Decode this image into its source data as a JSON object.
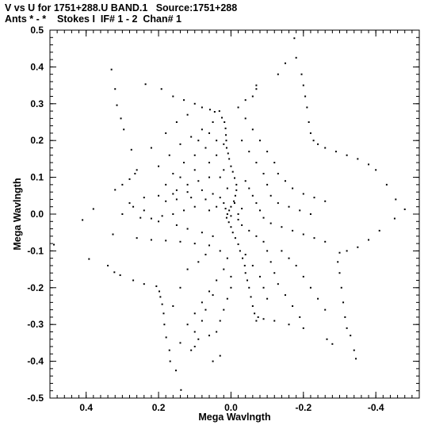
{
  "title_line1": "V vs U for 1751+288.U BAND.1   Source:1751+288",
  "title_line2": "Ants * - *    Stokes I  IF# 1 - 2  Chan# 1",
  "chart_data": {
    "type": "scatter",
    "title": "V vs U for 1751+288.U BAND.1   Source:1751+288",
    "subtitle": "Ants * - *    Stokes I  IF# 1 - 2  Chan# 1",
    "xlabel": "Mega Wavlngth",
    "ylabel": "Mega Wavlngth",
    "xlim": [
      0.5,
      -0.52
    ],
    "ylim": [
      -0.5,
      0.5
    ],
    "x_reversed": true,
    "xticks": [
      0.4,
      0.2,
      0.0,
      -0.2,
      -0.4
    ],
    "xtick_labels": [
      "0.4",
      "0.2",
      "0.0",
      "-0.2",
      "-0.4"
    ],
    "yticks": [
      0.5,
      0.4,
      0.3,
      0.2,
      0.1,
      0.0,
      -0.1,
      -0.2,
      -0.3,
      -0.4,
      -0.5
    ],
    "ytick_labels": [
      "0.5",
      "0.4",
      "0.3",
      "0.2",
      "0.1",
      "0.0",
      "-0.1",
      "-0.2",
      "-0.3",
      "-0.4",
      "-0.5"
    ],
    "grid": false,
    "marker": "dot",
    "marker_color": "#000000",
    "series": [
      {
        "values": [
          [
            0.489,
            -0.083
          ],
          [
            0.41,
            -0.016
          ],
          [
            0.38,
            0.014
          ],
          [
            0.392,
            -0.122
          ],
          [
            0.34,
            -0.14
          ],
          [
            0.322,
            -0.158
          ],
          [
            0.306,
            -0.166
          ],
          [
            0.27,
            -0.18
          ],
          [
            0.24,
            -0.19
          ],
          [
            0.206,
            -0.196
          ],
          [
            0.198,
            -0.21
          ],
          [
            0.195,
            -0.225
          ],
          [
            0.19,
            -0.245
          ],
          [
            0.186,
            -0.27
          ],
          [
            0.184,
            -0.3
          ],
          [
            0.179,
            -0.335
          ],
          [
            0.17,
            -0.37
          ],
          [
            0.168,
            -0.4
          ],
          [
            0.152,
            -0.425
          ],
          [
            0.138,
            -0.478
          ],
          [
            0.326,
            -0.055
          ],
          [
            0.32,
            0.066
          ],
          [
            0.3,
            0.08
          ],
          [
            0.28,
            0.095
          ],
          [
            0.265,
            0.11
          ],
          [
            0.26,
            0.12
          ],
          [
            0.275,
            0.175
          ],
          [
            0.296,
            0.23
          ],
          [
            0.304,
            0.26
          ],
          [
            0.315,
            0.296
          ],
          [
            0.32,
            0.34
          ],
          [
            0.33,
            0.393
          ],
          [
            0.236,
            0.353
          ],
          [
            0.192,
            0.34
          ],
          [
            0.16,
            0.32
          ],
          [
            0.13,
            0.31
          ],
          [
            0.1,
            0.3
          ],
          [
            0.08,
            0.29
          ],
          [
            0.058,
            0.284
          ],
          [
            0.045,
            0.278
          ],
          [
            0.032,
            0.28
          ],
          [
            0.025,
            0.262
          ],
          [
            0.018,
            0.25
          ],
          [
            0.015,
            0.233
          ],
          [
            0.014,
            0.215
          ],
          [
            0.013,
            0.2
          ],
          [
            0.012,
            0.18
          ],
          [
            0.008,
            0.165
          ],
          [
            0.005,
            0.15
          ],
          [
            0.0,
            0.13
          ],
          [
            -0.005,
            0.115
          ],
          [
            -0.01,
            0.098
          ],
          [
            -0.015,
            0.08
          ],
          [
            -0.015,
            0.065
          ],
          [
            -0.012,
            0.05
          ],
          [
            -0.008,
            0.035
          ],
          [
            0.0,
            0.02
          ],
          [
            0.005,
            0.01
          ],
          [
            0.01,
            0.0
          ],
          [
            0.012,
            -0.01
          ],
          [
            0.006,
            -0.022
          ],
          [
            0.0,
            -0.035
          ],
          [
            -0.005,
            -0.05
          ],
          [
            -0.012,
            -0.065
          ],
          [
            -0.02,
            -0.082
          ],
          [
            -0.025,
            -0.1
          ],
          [
            -0.032,
            -0.12
          ],
          [
            -0.038,
            -0.14
          ],
          [
            -0.04,
            -0.16
          ],
          [
            -0.045,
            -0.18
          ],
          [
            -0.05,
            -0.2
          ],
          [
            -0.055,
            -0.225
          ],
          [
            -0.06,
            -0.25
          ],
          [
            -0.065,
            -0.27
          ],
          [
            -0.07,
            -0.29
          ],
          [
            -0.02,
            0.29
          ],
          [
            -0.04,
            0.31
          ],
          [
            -0.06,
            0.32
          ],
          [
            -0.07,
            0.34
          ],
          [
            -0.07,
            0.35
          ],
          [
            -0.13,
            0.38
          ],
          [
            -0.15,
            0.41
          ],
          [
            -0.175,
            0.478
          ],
          [
            -0.18,
            0.425
          ],
          [
            -0.195,
            0.38
          ],
          [
            -0.2,
            0.35
          ],
          [
            -0.205,
            0.32
          ],
          [
            -0.21,
            0.29
          ],
          [
            -0.215,
            0.25
          ],
          [
            -0.22,
            0.22
          ],
          [
            -0.228,
            0.2
          ],
          [
            -0.24,
            0.19
          ],
          [
            -0.26,
            0.18
          ],
          [
            -0.29,
            0.17
          ],
          [
            -0.32,
            0.16
          ],
          [
            -0.35,
            0.15
          ],
          [
            -0.38,
            0.135
          ],
          [
            -0.4,
            0.12
          ],
          [
            -0.43,
            0.08
          ],
          [
            -0.455,
            0.04
          ],
          [
            -0.48,
            0.013
          ],
          [
            -0.452,
            -0.012
          ],
          [
            -0.41,
            -0.045
          ],
          [
            -0.38,
            -0.07
          ],
          [
            -0.35,
            -0.09
          ],
          [
            -0.32,
            -0.1
          ],
          [
            -0.3,
            -0.105
          ],
          [
            -0.295,
            -0.13
          ],
          [
            -0.3,
            -0.16
          ],
          [
            -0.305,
            -0.2
          ],
          [
            -0.31,
            -0.24
          ],
          [
            -0.315,
            -0.28
          ],
          [
            -0.32,
            -0.31
          ],
          [
            -0.33,
            -0.33
          ],
          [
            -0.34,
            -0.37
          ],
          [
            -0.345,
            -0.393
          ],
          [
            -0.265,
            -0.34
          ],
          [
            -0.28,
            -0.353
          ],
          [
            -0.2,
            -0.31
          ],
          [
            -0.16,
            -0.3
          ],
          [
            -0.12,
            -0.29
          ],
          [
            -0.09,
            -0.285
          ],
          [
            -0.075,
            -0.28
          ],
          [
            0.04,
            -0.32
          ],
          [
            0.06,
            -0.33
          ],
          [
            0.09,
            -0.34
          ],
          [
            0.1,
            -0.36
          ],
          [
            0.11,
            -0.37
          ],
          [
            0.05,
            -0.4
          ],
          [
            0.03,
            -0.385
          ],
          [
            0.14,
            -0.35
          ],
          [
            0.12,
            -0.3
          ],
          [
            0.1,
            -0.27
          ],
          [
            0.08,
            -0.24
          ],
          [
            0.06,
            -0.21
          ],
          [
            0.04,
            -0.18
          ],
          [
            0.02,
            -0.15
          ],
          [
            0.01,
            -0.12
          ],
          [
            0.03,
            -0.1
          ],
          [
            0.06,
            -0.085
          ],
          [
            0.1,
            -0.08
          ],
          [
            0.14,
            -0.075
          ],
          [
            0.18,
            -0.072
          ],
          [
            0.22,
            -0.07
          ],
          [
            0.26,
            -0.065
          ],
          [
            0.12,
            -0.15
          ],
          [
            0.14,
            -0.2
          ],
          [
            0.16,
            -0.25
          ],
          [
            0.09,
            -0.13
          ],
          [
            0.07,
            -0.11
          ],
          [
            0.05,
            -0.06
          ],
          [
            0.08,
            -0.05
          ],
          [
            0.12,
            -0.04
          ],
          [
            0.15,
            -0.03
          ],
          [
            0.2,
            -0.02
          ],
          [
            0.25,
            -0.01
          ],
          [
            0.3,
            0.0
          ],
          [
            0.28,
            0.03
          ],
          [
            0.24,
            0.045
          ],
          [
            0.2,
            0.05
          ],
          [
            0.16,
            0.055
          ],
          [
            0.12,
            0.06
          ],
          [
            0.08,
            0.065
          ],
          [
            0.05,
            0.055
          ],
          [
            0.03,
            0.045
          ],
          [
            0.18,
            0.08
          ],
          [
            0.14,
            0.1
          ],
          [
            0.1,
            0.12
          ],
          [
            0.06,
            0.14
          ],
          [
            0.04,
            0.16
          ],
          [
            0.2,
            0.13
          ],
          [
            0.17,
            0.16
          ],
          [
            0.14,
            0.19
          ],
          [
            0.11,
            0.21
          ],
          [
            0.08,
            0.23
          ],
          [
            0.05,
            0.25
          ],
          [
            0.22,
            0.18
          ],
          [
            0.18,
            0.22
          ],
          [
            0.15,
            0.25
          ],
          [
            0.12,
            0.27
          ],
          [
            -0.04,
            0.26
          ],
          [
            -0.06,
            0.23
          ],
          [
            -0.08,
            0.2
          ],
          [
            -0.1,
            0.17
          ],
          [
            -0.12,
            0.14
          ],
          [
            -0.13,
            0.11
          ],
          [
            -0.15,
            0.09
          ],
          [
            -0.17,
            0.07
          ],
          [
            -0.2,
            0.055
          ],
          [
            -0.23,
            0.045
          ],
          [
            -0.26,
            0.035
          ],
          [
            -0.03,
            0.2
          ],
          [
            -0.05,
            0.17
          ],
          [
            -0.07,
            0.14
          ],
          [
            -0.09,
            0.11
          ],
          [
            -0.1,
            0.08
          ],
          [
            -0.11,
            0.05
          ],
          [
            -0.13,
            0.03
          ],
          [
            -0.16,
            0.02
          ],
          [
            -0.19,
            0.01
          ],
          [
            -0.22,
            0.0
          ],
          [
            -0.04,
            0.09
          ],
          [
            -0.05,
            0.07
          ],
          [
            -0.06,
            0.05
          ],
          [
            -0.07,
            0.03
          ],
          [
            -0.08,
            0.01
          ],
          [
            -0.09,
            -0.01
          ],
          [
            -0.11,
            -0.025
          ],
          [
            -0.14,
            -0.035
          ],
          [
            -0.17,
            -0.045
          ],
          [
            -0.2,
            -0.055
          ],
          [
            -0.23,
            -0.065
          ],
          [
            -0.26,
            -0.075
          ],
          [
            -0.03,
            -0.03
          ],
          [
            -0.05,
            -0.045
          ],
          [
            -0.07,
            -0.06
          ],
          [
            -0.09,
            -0.075
          ],
          [
            -0.1,
            -0.1
          ],
          [
            -0.11,
            -0.13
          ],
          [
            -0.12,
            -0.16
          ],
          [
            -0.13,
            -0.19
          ],
          [
            -0.15,
            -0.22
          ],
          [
            -0.17,
            -0.25
          ],
          [
            -0.19,
            -0.28
          ],
          [
            -0.14,
            -0.1
          ],
          [
            -0.16,
            -0.12
          ],
          [
            -0.18,
            -0.14
          ],
          [
            -0.2,
            -0.17
          ],
          [
            -0.22,
            -0.2
          ],
          [
            -0.24,
            -0.23
          ],
          [
            -0.26,
            -0.26
          ],
          [
            -0.04,
            -0.11
          ],
          [
            -0.06,
            -0.14
          ],
          [
            -0.08,
            -0.17
          ],
          [
            -0.09,
            -0.2
          ],
          [
            -0.1,
            -0.23
          ],
          [
            0.0,
            -0.17
          ],
          [
            0.0,
            -0.2
          ],
          [
            0.01,
            -0.23
          ],
          [
            0.02,
            -0.26
          ],
          [
            0.03,
            -0.29
          ],
          [
            0.05,
            -0.22
          ],
          [
            0.07,
            -0.26
          ],
          [
            0.08,
            -0.29
          ],
          [
            0.1,
            -0.32
          ],
          [
            0.03,
            0.1
          ],
          [
            0.02,
            0.12
          ],
          [
            0.01,
            0.07
          ],
          [
            0.02,
            0.03
          ],
          [
            0.04,
            0.02
          ],
          [
            0.06,
            0.01
          ],
          [
            -0.02,
            0.0
          ],
          [
            -0.03,
            0.015
          ],
          [
            -0.02,
            -0.015
          ],
          [
            0.0,
            -0.005
          ],
          [
            0.015,
            0.015
          ],
          [
            -0.01,
            0.03
          ],
          [
            0.1,
            0.02
          ],
          [
            0.13,
            0.01
          ],
          [
            0.16,
            0.0
          ],
          [
            0.19,
            -0.005
          ],
          [
            0.22,
            -0.012
          ],
          [
            0.24,
            0.01
          ],
          [
            0.27,
            0.02
          ],
          [
            0.18,
            0.035
          ],
          [
            0.15,
            0.04
          ],
          [
            0.11,
            0.045
          ],
          [
            0.07,
            0.04
          ],
          [
            0.09,
            0.09
          ],
          [
            0.12,
            0.08
          ],
          [
            0.15,
            0.065
          ],
          [
            0.06,
            0.1
          ],
          [
            0.07,
            0.18
          ],
          [
            0.1,
            0.16
          ],
          [
            0.13,
            0.14
          ],
          [
            0.16,
            0.11
          ],
          [
            0.09,
            0.2
          ],
          [
            0.06,
            0.22
          ],
          [
            0.04,
            0.2
          ],
          [
            0.02,
            0.19
          ]
        ]
      }
    ]
  }
}
